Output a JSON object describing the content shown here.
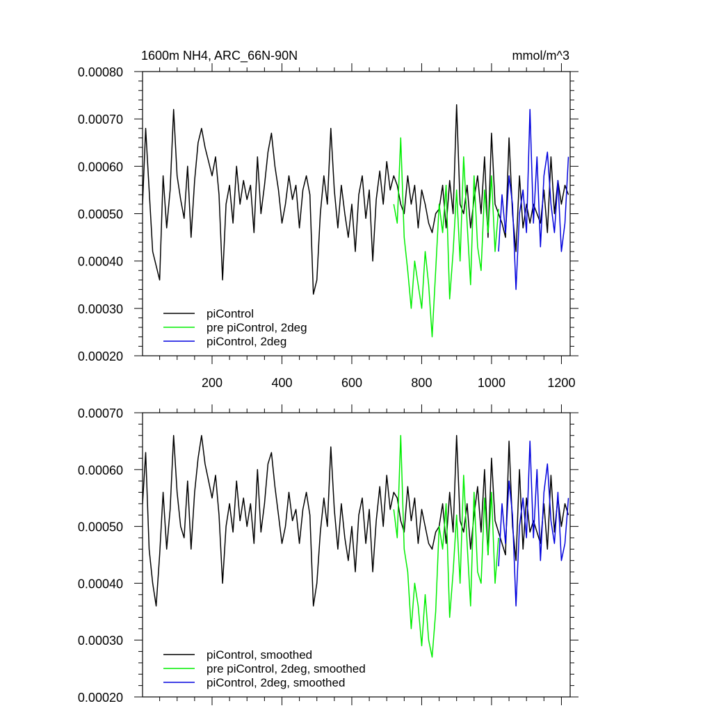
{
  "page": {
    "title_left": "1600m NH4, ARC_66N-90N",
    "title_right": "mmol/m^3"
  },
  "colors": {
    "piControl": "#000000",
    "pre_piControl_2deg": "#00ee00",
    "piControl_2deg": "#0000dd"
  },
  "chart_data": [
    {
      "type": "line",
      "title": "1600m NH4, ARC_66N-90N",
      "units_label": "mmol/m^3",
      "xlim": [
        1,
        1225
      ],
      "ylim": [
        0.0002,
        0.0008
      ],
      "x_ticks": [
        200,
        400,
        600,
        800,
        1000,
        1200
      ],
      "x_tick_labels": [
        "200",
        "400",
        "600",
        "800",
        "1000",
        "1200"
      ],
      "y_ticks": [
        0.0002,
        0.0003,
        0.0004,
        0.0005,
        0.0006,
        0.0007,
        0.0008
      ],
      "y_tick_labels": [
        "0.00020",
        "0.00030",
        "0.00040",
        "0.00050",
        "0.00060",
        "0.00070",
        "0.00080"
      ],
      "legend_position": "bottom-left",
      "grid": false,
      "series": [
        {
          "name": "piControl",
          "color_key": "piControl",
          "x": [
            1,
            10,
            20,
            30,
            40,
            50,
            60,
            70,
            80,
            90,
            100,
            110,
            120,
            130,
            140,
            150,
            160,
            170,
            180,
            190,
            200,
            210,
            220,
            230,
            240,
            250,
            260,
            270,
            280,
            290,
            300,
            310,
            320,
            330,
            340,
            350,
            360,
            370,
            380,
            390,
            400,
            410,
            420,
            430,
            440,
            450,
            460,
            470,
            480,
            490,
            500,
            510,
            520,
            530,
            540,
            550,
            560,
            570,
            580,
            590,
            600,
            610,
            620,
            630,
            640,
            650,
            660,
            670,
            680,
            690,
            700,
            710,
            720,
            730,
            740,
            750,
            760,
            770,
            780,
            790,
            800,
            810,
            820,
            830,
            840,
            850,
            860,
            870,
            880,
            890,
            900,
            910,
            920,
            930,
            940,
            950,
            960,
            970,
            980,
            990,
            1000,
            1010,
            1020,
            1030,
            1040,
            1050,
            1060,
            1070,
            1080,
            1090,
            1100,
            1110,
            1120,
            1130,
            1140,
            1150,
            1160,
            1170,
            1180,
            1190,
            1200,
            1210,
            1220
          ],
          "y": [
            0.00052,
            0.00068,
            0.00055,
            0.00042,
            0.00039,
            0.00036,
            0.00058,
            0.00047,
            0.00055,
            0.00072,
            0.00058,
            0.00053,
            0.00049,
            0.0006,
            0.00045,
            0.00057,
            0.00065,
            0.00068,
            0.00064,
            0.00061,
            0.00058,
            0.00062,
            0.00054,
            0.00036,
            0.00052,
            0.00056,
            0.00048,
            0.0006,
            0.00052,
            0.00057,
            0.00053,
            0.00056,
            0.00046,
            0.00062,
            0.0005,
            0.00056,
            0.00063,
            0.00067,
            0.0006,
            0.00055,
            0.00048,
            0.00052,
            0.00058,
            0.00053,
            0.00056,
            0.00047,
            0.00055,
            0.00058,
            0.00054,
            0.00033,
            0.00036,
            0.0005,
            0.00058,
            0.00052,
            0.00068,
            0.00055,
            0.00047,
            0.00056,
            0.0005,
            0.00045,
            0.00052,
            0.00042,
            0.00054,
            0.00058,
            0.00049,
            0.00055,
            0.0004,
            0.00053,
            0.00059,
            0.00052,
            0.00061,
            0.00055,
            0.00058,
            0.00056,
            0.00052,
            0.0005,
            0.00058,
            0.00052,
            0.00056,
            0.00047,
            0.00055,
            0.00052,
            0.00048,
            0.00046,
            0.0005,
            0.00051,
            0.00056,
            0.00047,
            0.00057,
            0.0005,
            0.00073,
            0.00052,
            0.0005,
            0.00056,
            0.00047,
            0.00053,
            0.00058,
            0.0005,
            0.00062,
            0.00045,
            0.00067,
            0.00052,
            0.0005,
            0.00048,
            0.00045,
            0.00066,
            0.0005,
            0.00042,
            0.00058,
            0.00047,
            0.00052,
            0.00048,
            0.00052,
            0.0005,
            0.00048,
            0.00055,
            0.00046,
            0.00062,
            0.0005,
            0.00057,
            0.00052,
            0.00056,
            0.00054
          ]
        },
        {
          "name": "pre piControl, 2deg",
          "color_key": "pre_piControl_2deg",
          "x": [
            720,
            730,
            740,
            750,
            760,
            770,
            780,
            790,
            800,
            810,
            820,
            830,
            840,
            850,
            860,
            870,
            880,
            890,
            900,
            910,
            920,
            930,
            940,
            950,
            960,
            970,
            980,
            990,
            1000,
            1010,
            1020
          ],
          "y": [
            0.00052,
            0.00048,
            0.00066,
            0.00045,
            0.00038,
            0.0003,
            0.0004,
            0.00035,
            0.0003,
            0.00042,
            0.00035,
            0.00024,
            0.00038,
            0.00052,
            0.00046,
            0.00056,
            0.00032,
            0.00042,
            0.00055,
            0.0004,
            0.00062,
            0.00048,
            0.00035,
            0.00058,
            0.00043,
            0.00038,
            0.00055,
            0.00046,
            0.00058,
            0.00042,
            0.00051
          ]
        },
        {
          "name": "piControl, 2deg",
          "color_key": "piControl_2deg",
          "x": [
            1020,
            1030,
            1040,
            1050,
            1060,
            1070,
            1080,
            1090,
            1100,
            1110,
            1120,
            1130,
            1140,
            1150,
            1160,
            1170,
            1180,
            1190,
            1200,
            1210,
            1220
          ],
          "y": [
            0.00042,
            0.00054,
            0.00046,
            0.00058,
            0.00052,
            0.00034,
            0.0005,
            0.00055,
            0.00046,
            0.00072,
            0.00048,
            0.00062,
            0.00043,
            0.00058,
            0.00063,
            0.00052,
            0.00046,
            0.00057,
            0.00042,
            0.00048,
            0.00062
          ]
        }
      ]
    },
    {
      "type": "line",
      "xlim": [
        1,
        1225
      ],
      "ylim": [
        0.0002,
        0.0007
      ],
      "x_ticks": [
        200,
        400,
        600,
        800,
        1000,
        1200
      ],
      "x_tick_labels": [],
      "y_ticks": [
        0.0002,
        0.0003,
        0.0004,
        0.0005,
        0.0006,
        0.0007
      ],
      "y_tick_labels": [
        "0.00020",
        "0.00030",
        "0.00040",
        "0.00050",
        "0.00060",
        "0.00070"
      ],
      "legend_position": "bottom-left",
      "grid": false,
      "series": [
        {
          "name": "piControl, smoothed",
          "color_key": "piControl",
          "x": [
            1,
            10,
            20,
            30,
            40,
            50,
            60,
            70,
            80,
            90,
            100,
            110,
            120,
            130,
            140,
            150,
            160,
            170,
            180,
            190,
            200,
            210,
            220,
            230,
            240,
            250,
            260,
            270,
            280,
            290,
            300,
            310,
            320,
            330,
            340,
            350,
            360,
            370,
            380,
            390,
            400,
            410,
            420,
            430,
            440,
            450,
            460,
            470,
            480,
            490,
            500,
            510,
            520,
            530,
            540,
            550,
            560,
            570,
            580,
            590,
            600,
            610,
            620,
            630,
            640,
            650,
            660,
            670,
            680,
            690,
            700,
            710,
            720,
            730,
            740,
            750,
            760,
            770,
            780,
            790,
            800,
            810,
            820,
            830,
            840,
            850,
            860,
            870,
            880,
            890,
            900,
            910,
            920,
            930,
            940,
            950,
            960,
            970,
            980,
            990,
            1000,
            1010,
            1020,
            1030,
            1040,
            1050,
            1060,
            1070,
            1080,
            1090,
            1100,
            1110,
            1120,
            1130,
            1140,
            1150,
            1160,
            1170,
            1180,
            1190,
            1200,
            1210,
            1220
          ],
          "y": [
            0.00054,
            0.00063,
            0.00046,
            0.0004,
            0.00036,
            0.00045,
            0.00056,
            0.00046,
            0.00053,
            0.00066,
            0.00056,
            0.0005,
            0.00048,
            0.00058,
            0.00046,
            0.00056,
            0.00062,
            0.00066,
            0.00061,
            0.00058,
            0.00055,
            0.00059,
            0.00052,
            0.0004,
            0.0005,
            0.00054,
            0.00049,
            0.00058,
            0.00051,
            0.00055,
            0.0005,
            0.00054,
            0.00047,
            0.0006,
            0.00049,
            0.00054,
            0.00061,
            0.00063,
            0.00057,
            0.00052,
            0.00047,
            0.0005,
            0.00056,
            0.00051,
            0.00053,
            0.00047,
            0.00053,
            0.00056,
            0.00052,
            0.00036,
            0.0004,
            0.00049,
            0.00055,
            0.0005,
            0.00064,
            0.00053,
            0.00046,
            0.00054,
            0.00048,
            0.00044,
            0.0005,
            0.00042,
            0.00052,
            0.00055,
            0.00047,
            0.00053,
            0.00042,
            0.00051,
            0.00057,
            0.0005,
            0.00059,
            0.00053,
            0.00056,
            0.00055,
            0.00051,
            0.00049,
            0.00057,
            0.00051,
            0.00055,
            0.00047,
            0.00053,
            0.0005,
            0.00047,
            0.00046,
            0.00049,
            0.0005,
            0.00054,
            0.00047,
            0.00056,
            0.00049,
            0.00066,
            0.00051,
            0.00049,
            0.00054,
            0.00046,
            0.00052,
            0.00057,
            0.00049,
            0.0006,
            0.00045,
            0.00062,
            0.00051,
            0.00049,
            0.00047,
            0.00045,
            0.00065,
            0.0005,
            0.00044,
            0.0006,
            0.00046,
            0.00055,
            0.00049,
            0.00051,
            0.00049,
            0.00047,
            0.00054,
            0.00046,
            0.00059,
            0.00049,
            0.00055,
            0.0005,
            0.00054,
            0.00052
          ]
        },
        {
          "name": "pre piControl, 2deg, smoothed",
          "color_key": "pre_piControl_2deg",
          "x": [
            720,
            730,
            740,
            750,
            760,
            770,
            780,
            790,
            800,
            810,
            820,
            830,
            840,
            850,
            860,
            870,
            880,
            890,
            900,
            910,
            920,
            930,
            940,
            950,
            960,
            970,
            980,
            990,
            1000,
            1010,
            1020
          ],
          "y": [
            0.00053,
            0.00048,
            0.00066,
            0.00046,
            0.00042,
            0.00032,
            0.0004,
            0.00036,
            0.00029,
            0.00038,
            0.0003,
            0.00027,
            0.00035,
            0.0005,
            0.00046,
            0.00054,
            0.00034,
            0.00042,
            0.00052,
            0.0004,
            0.00059,
            0.00047,
            0.00036,
            0.00056,
            0.00042,
            0.0004,
            0.00055,
            0.00045,
            0.00056,
            0.0004,
            0.00048
          ]
        },
        {
          "name": "piControl, 2deg, smoothed",
          "color_key": "piControl_2deg",
          "x": [
            1020,
            1030,
            1040,
            1050,
            1060,
            1070,
            1080,
            1090,
            1100,
            1110,
            1120,
            1130,
            1140,
            1150,
            1160,
            1170,
            1180,
            1190,
            1200,
            1210,
            1220
          ],
          "y": [
            0.00043,
            0.00054,
            0.00047,
            0.00058,
            0.00052,
            0.00036,
            0.0005,
            0.00055,
            0.00048,
            0.00065,
            0.00048,
            0.0006,
            0.00044,
            0.00056,
            0.00061,
            0.00051,
            0.00047,
            0.00056,
            0.00044,
            0.00047,
            0.00055
          ]
        }
      ]
    }
  ]
}
